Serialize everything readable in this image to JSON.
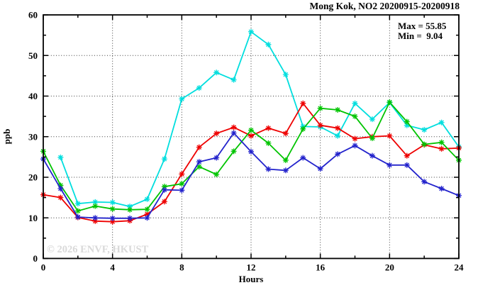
{
  "title": "Mong Kok, NO2 20200915-20200918",
  "annotation": {
    "max_label": "Max = 55.85",
    "min_label": "Min =  9.04"
  },
  "watermark": "© 2026 ENVF, HKUST",
  "axes": {
    "xlabel": "Hours",
    "ylabel": "ppb"
  },
  "chart_data": {
    "type": "line",
    "title": "Mong Kok, NO2 20200915-20200918",
    "xlabel": "Hours",
    "ylabel": "ppb",
    "xlim": [
      0,
      24
    ],
    "ylim": [
      0,
      60
    ],
    "xticks_major": [
      0,
      4,
      8,
      12,
      16,
      20,
      24
    ],
    "xticks_minor": [
      2,
      6,
      10,
      14,
      18,
      22
    ],
    "yticks_major": [
      0,
      10,
      20,
      30,
      40,
      50,
      60
    ],
    "yticks_minor": [
      5,
      15,
      25,
      35,
      45,
      55
    ],
    "grid": "dotted horizontal at 10,20,30,40,50 and vertical at 4,8,12,16,20",
    "legend_position": "none",
    "marker": "asterisk",
    "max": 55.85,
    "min": 9.04,
    "series": [
      {
        "name": "series-cyan",
        "color": "#00dede",
        "x": [
          1,
          2,
          3,
          4,
          5,
          6,
          7,
          8,
          9,
          10,
          11,
          12,
          13,
          14,
          15,
          16,
          17,
          18,
          19,
          20,
          21,
          22,
          23,
          24
        ],
        "values": [
          24.9,
          13.5,
          13.9,
          13.8,
          12.8,
          14.6,
          24.5,
          39.3,
          42.0,
          45.8,
          44.0,
          55.85,
          52.7,
          45.3,
          32.5,
          32.4,
          30.2,
          38.2,
          34.3,
          38.4,
          32.8,
          31.7,
          33.5,
          27.5
        ]
      },
      {
        "name": "series-red",
        "color": "#ee0000",
        "x": [
          0,
          1,
          2,
          3,
          4,
          5,
          6,
          7,
          8,
          9,
          10,
          11,
          12,
          13,
          14,
          15,
          16,
          17,
          18,
          19,
          20,
          21,
          22,
          23,
          24
        ],
        "values": [
          15.7,
          15.0,
          10.1,
          9.2,
          9.04,
          9.3,
          10.9,
          14.0,
          20.8,
          27.4,
          30.8,
          32.3,
          30.2,
          32.1,
          30.8,
          38.2,
          32.8,
          32.1,
          29.5,
          30.0,
          30.2,
          25.3,
          28.0,
          27.0,
          27.2
        ]
      },
      {
        "name": "series-green",
        "color": "#00c400",
        "x": [
          0,
          1,
          2,
          3,
          4,
          5,
          6,
          7,
          8,
          9,
          10,
          11,
          12,
          13,
          14,
          15,
          16,
          17,
          18,
          19,
          20,
          21,
          22,
          23,
          24
        ],
        "values": [
          26.4,
          18.0,
          11.7,
          12.9,
          12.2,
          12.0,
          12.1,
          17.7,
          18.4,
          22.6,
          20.7,
          26.4,
          31.6,
          28.4,
          24.2,
          31.9,
          37.0,
          36.6,
          35.0,
          29.6,
          38.5,
          33.7,
          28.1,
          28.6,
          24.2
        ]
      },
      {
        "name": "series-blue",
        "color": "#2323cc",
        "x": [
          0,
          1,
          2,
          3,
          4,
          5,
          6,
          7,
          8,
          9,
          10,
          11,
          12,
          13,
          14,
          15,
          16,
          17,
          18,
          19,
          20,
          21,
          22,
          23,
          24
        ],
        "values": [
          24.5,
          17.2,
          10.2,
          10.0,
          9.9,
          9.9,
          10.0,
          16.9,
          16.8,
          23.8,
          24.8,
          30.9,
          26.3,
          22.0,
          21.7,
          24.8,
          22.1,
          25.7,
          27.8,
          25.3,
          23.0,
          23.0,
          18.9,
          17.2,
          15.5
        ]
      }
    ]
  }
}
